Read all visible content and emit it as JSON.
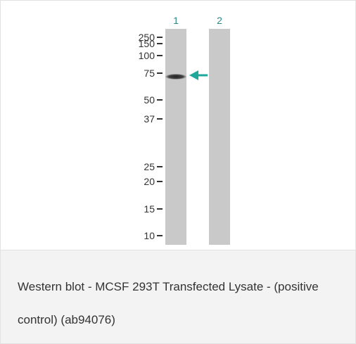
{
  "figure": {
    "lanes": [
      "1",
      "2"
    ],
    "markers": [
      "250",
      "150",
      "100",
      "75",
      "50",
      "37",
      "25",
      "20",
      "15",
      "10"
    ],
    "caption": "Western blot - MCSF 293T Transfected Lysate - (positive control) (ab94076)"
  }
}
